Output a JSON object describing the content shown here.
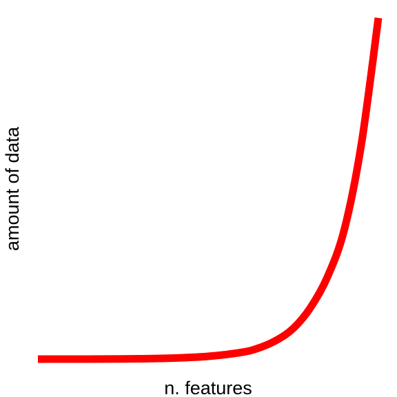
{
  "chart_data": {
    "type": "line",
    "title": "",
    "xlabel": "n. features",
    "ylabel": "amount of data",
    "grid": false,
    "axes_visible": false,
    "scale": {
      "y": "exponential"
    },
    "xlim": [
      0,
      1
    ],
    "ylim": [
      0,
      1
    ],
    "series": [
      {
        "color": "#ff0000",
        "x": [
          0.0,
          0.1,
          0.2,
          0.3,
          0.4,
          0.5,
          0.6,
          0.65,
          0.7,
          0.75,
          0.8,
          0.85,
          0.9,
          0.95,
          1.0
        ],
        "values": [
          0.0,
          0.0,
          0.0003,
          0.001,
          0.003,
          0.008,
          0.02,
          0.033,
          0.055,
          0.09,
          0.15,
          0.24,
          0.38,
          0.63,
          1.0
        ]
      }
    ]
  }
}
